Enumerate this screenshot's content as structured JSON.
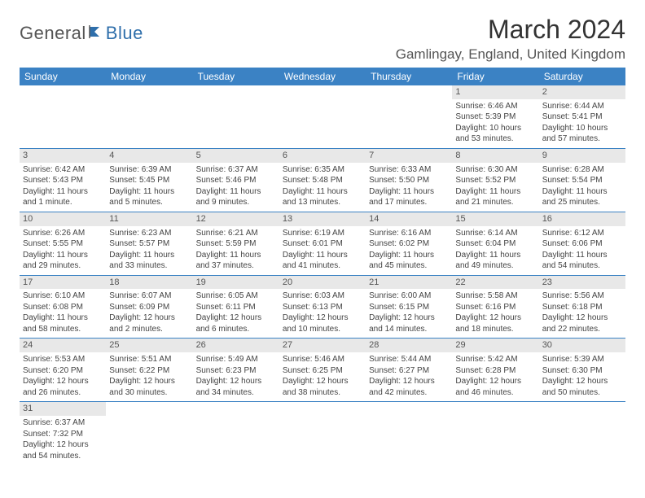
{
  "logo": {
    "text1": "General",
    "text2": "Blue"
  },
  "title": "March 2024",
  "location": "Gamlingay, England, United Kingdom",
  "colors": {
    "header_bg": "#3b82c4",
    "header_text": "#ffffff",
    "daynum_bg": "#e8e8e8",
    "row_border": "#3b82c4",
    "logo_accent": "#2f6fab",
    "logo_gray": "#555555"
  },
  "dayNames": [
    "Sunday",
    "Monday",
    "Tuesday",
    "Wednesday",
    "Thursday",
    "Friday",
    "Saturday"
  ],
  "weeks": [
    [
      null,
      null,
      null,
      null,
      null,
      {
        "d": "1",
        "sr": "Sunrise: 6:46 AM",
        "ss": "Sunset: 5:39 PM",
        "dl1": "Daylight: 10 hours",
        "dl2": "and 53 minutes."
      },
      {
        "d": "2",
        "sr": "Sunrise: 6:44 AM",
        "ss": "Sunset: 5:41 PM",
        "dl1": "Daylight: 10 hours",
        "dl2": "and 57 minutes."
      }
    ],
    [
      {
        "d": "3",
        "sr": "Sunrise: 6:42 AM",
        "ss": "Sunset: 5:43 PM",
        "dl1": "Daylight: 11 hours",
        "dl2": "and 1 minute."
      },
      {
        "d": "4",
        "sr": "Sunrise: 6:39 AM",
        "ss": "Sunset: 5:45 PM",
        "dl1": "Daylight: 11 hours",
        "dl2": "and 5 minutes."
      },
      {
        "d": "5",
        "sr": "Sunrise: 6:37 AM",
        "ss": "Sunset: 5:46 PM",
        "dl1": "Daylight: 11 hours",
        "dl2": "and 9 minutes."
      },
      {
        "d": "6",
        "sr": "Sunrise: 6:35 AM",
        "ss": "Sunset: 5:48 PM",
        "dl1": "Daylight: 11 hours",
        "dl2": "and 13 minutes."
      },
      {
        "d": "7",
        "sr": "Sunrise: 6:33 AM",
        "ss": "Sunset: 5:50 PM",
        "dl1": "Daylight: 11 hours",
        "dl2": "and 17 minutes."
      },
      {
        "d": "8",
        "sr": "Sunrise: 6:30 AM",
        "ss": "Sunset: 5:52 PM",
        "dl1": "Daylight: 11 hours",
        "dl2": "and 21 minutes."
      },
      {
        "d": "9",
        "sr": "Sunrise: 6:28 AM",
        "ss": "Sunset: 5:54 PM",
        "dl1": "Daylight: 11 hours",
        "dl2": "and 25 minutes."
      }
    ],
    [
      {
        "d": "10",
        "sr": "Sunrise: 6:26 AM",
        "ss": "Sunset: 5:55 PM",
        "dl1": "Daylight: 11 hours",
        "dl2": "and 29 minutes."
      },
      {
        "d": "11",
        "sr": "Sunrise: 6:23 AM",
        "ss": "Sunset: 5:57 PM",
        "dl1": "Daylight: 11 hours",
        "dl2": "and 33 minutes."
      },
      {
        "d": "12",
        "sr": "Sunrise: 6:21 AM",
        "ss": "Sunset: 5:59 PM",
        "dl1": "Daylight: 11 hours",
        "dl2": "and 37 minutes."
      },
      {
        "d": "13",
        "sr": "Sunrise: 6:19 AM",
        "ss": "Sunset: 6:01 PM",
        "dl1": "Daylight: 11 hours",
        "dl2": "and 41 minutes."
      },
      {
        "d": "14",
        "sr": "Sunrise: 6:16 AM",
        "ss": "Sunset: 6:02 PM",
        "dl1": "Daylight: 11 hours",
        "dl2": "and 45 minutes."
      },
      {
        "d": "15",
        "sr": "Sunrise: 6:14 AM",
        "ss": "Sunset: 6:04 PM",
        "dl1": "Daylight: 11 hours",
        "dl2": "and 49 minutes."
      },
      {
        "d": "16",
        "sr": "Sunrise: 6:12 AM",
        "ss": "Sunset: 6:06 PM",
        "dl1": "Daylight: 11 hours",
        "dl2": "and 54 minutes."
      }
    ],
    [
      {
        "d": "17",
        "sr": "Sunrise: 6:10 AM",
        "ss": "Sunset: 6:08 PM",
        "dl1": "Daylight: 11 hours",
        "dl2": "and 58 minutes."
      },
      {
        "d": "18",
        "sr": "Sunrise: 6:07 AM",
        "ss": "Sunset: 6:09 PM",
        "dl1": "Daylight: 12 hours",
        "dl2": "and 2 minutes."
      },
      {
        "d": "19",
        "sr": "Sunrise: 6:05 AM",
        "ss": "Sunset: 6:11 PM",
        "dl1": "Daylight: 12 hours",
        "dl2": "and 6 minutes."
      },
      {
        "d": "20",
        "sr": "Sunrise: 6:03 AM",
        "ss": "Sunset: 6:13 PM",
        "dl1": "Daylight: 12 hours",
        "dl2": "and 10 minutes."
      },
      {
        "d": "21",
        "sr": "Sunrise: 6:00 AM",
        "ss": "Sunset: 6:15 PM",
        "dl1": "Daylight: 12 hours",
        "dl2": "and 14 minutes."
      },
      {
        "d": "22",
        "sr": "Sunrise: 5:58 AM",
        "ss": "Sunset: 6:16 PM",
        "dl1": "Daylight: 12 hours",
        "dl2": "and 18 minutes."
      },
      {
        "d": "23",
        "sr": "Sunrise: 5:56 AM",
        "ss": "Sunset: 6:18 PM",
        "dl1": "Daylight: 12 hours",
        "dl2": "and 22 minutes."
      }
    ],
    [
      {
        "d": "24",
        "sr": "Sunrise: 5:53 AM",
        "ss": "Sunset: 6:20 PM",
        "dl1": "Daylight: 12 hours",
        "dl2": "and 26 minutes."
      },
      {
        "d": "25",
        "sr": "Sunrise: 5:51 AM",
        "ss": "Sunset: 6:22 PM",
        "dl1": "Daylight: 12 hours",
        "dl2": "and 30 minutes."
      },
      {
        "d": "26",
        "sr": "Sunrise: 5:49 AM",
        "ss": "Sunset: 6:23 PM",
        "dl1": "Daylight: 12 hours",
        "dl2": "and 34 minutes."
      },
      {
        "d": "27",
        "sr": "Sunrise: 5:46 AM",
        "ss": "Sunset: 6:25 PM",
        "dl1": "Daylight: 12 hours",
        "dl2": "and 38 minutes."
      },
      {
        "d": "28",
        "sr": "Sunrise: 5:44 AM",
        "ss": "Sunset: 6:27 PM",
        "dl1": "Daylight: 12 hours",
        "dl2": "and 42 minutes."
      },
      {
        "d": "29",
        "sr": "Sunrise: 5:42 AM",
        "ss": "Sunset: 6:28 PM",
        "dl1": "Daylight: 12 hours",
        "dl2": "and 46 minutes."
      },
      {
        "d": "30",
        "sr": "Sunrise: 5:39 AM",
        "ss": "Sunset: 6:30 PM",
        "dl1": "Daylight: 12 hours",
        "dl2": "and 50 minutes."
      }
    ],
    [
      {
        "d": "31",
        "sr": "Sunrise: 6:37 AM",
        "ss": "Sunset: 7:32 PM",
        "dl1": "Daylight: 12 hours",
        "dl2": "and 54 minutes."
      },
      null,
      null,
      null,
      null,
      null,
      null
    ]
  ]
}
